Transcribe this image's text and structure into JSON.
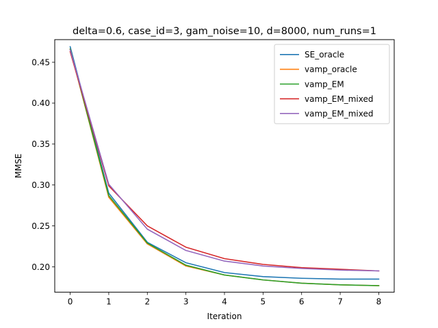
{
  "chart_data": {
    "type": "line",
    "title": "delta=0.6, case_id=3, gam_noise=10, d=8000, num_runs=1",
    "xlabel": "Iteration",
    "ylabel": "MMSE",
    "xlim": [
      -0.4,
      8.4
    ],
    "ylim": [
      0.169,
      0.4776
    ],
    "xticks": [
      0,
      1,
      2,
      3,
      4,
      5,
      6,
      7,
      8
    ],
    "yticks": [
      0.2,
      0.25,
      0.3,
      0.35,
      0.4,
      0.45
    ],
    "ytick_labels": [
      "0.20",
      "0.25",
      "0.30",
      "0.35",
      "0.40",
      "0.45"
    ],
    "grid": false,
    "legend_position": "upper right",
    "x": [
      0,
      1,
      2,
      3,
      4,
      5,
      6,
      7,
      8
    ],
    "series": [
      {
        "name": "SE_oracle",
        "color": "#1f77b4",
        "values": [
          0.469,
          0.29,
          0.23,
          0.205,
          0.193,
          0.188,
          0.186,
          0.185,
          0.185
        ]
      },
      {
        "name": "vamp_oracle",
        "color": "#ff7f0e",
        "values": [
          0.466,
          0.285,
          0.228,
          0.201,
          0.19,
          0.184,
          0.18,
          0.178,
          0.177
        ]
      },
      {
        "name": "vamp_EM",
        "color": "#2ca02c",
        "values": [
          0.466,
          0.287,
          0.229,
          0.202,
          0.19,
          0.184,
          0.18,
          0.178,
          0.177
        ]
      },
      {
        "name": "vamp_EM_mixed",
        "color": "#d62728",
        "values": [
          0.463,
          0.299,
          0.25,
          0.224,
          0.21,
          0.203,
          0.199,
          0.197,
          0.195
        ]
      },
      {
        "name": "vamp_EM_mixed",
        "color": "#9467bd",
        "values": [
          0.465,
          0.301,
          0.246,
          0.22,
          0.207,
          0.201,
          0.198,
          0.196,
          0.195
        ]
      }
    ]
  }
}
